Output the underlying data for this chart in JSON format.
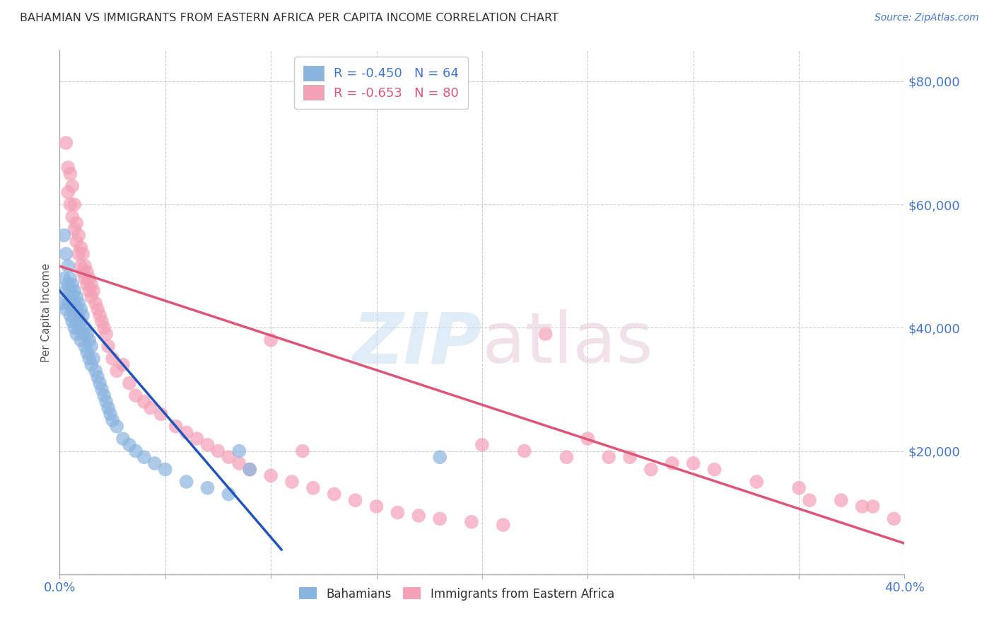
{
  "title": "BAHAMIAN VS IMMIGRANTS FROM EASTERN AFRICA PER CAPITA INCOME CORRELATION CHART",
  "source": "Source: ZipAtlas.com",
  "ylabel": "Per Capita Income",
  "xmin": 0.0,
  "xmax": 0.4,
  "ymin": 0,
  "ymax": 85000,
  "yticks": [
    0,
    20000,
    40000,
    60000,
    80000
  ],
  "xticks": [
    0.0,
    0.05,
    0.1,
    0.15,
    0.2,
    0.25,
    0.3,
    0.35,
    0.4
  ],
  "blue_R": -0.45,
  "blue_N": 64,
  "pink_R": -0.653,
  "pink_N": 80,
  "blue_color": "#8ab4e0",
  "pink_color": "#f4a0b5",
  "blue_line_color": "#2255bb",
  "pink_line_color": "#dd5577",
  "blue_line_x0": 0.0,
  "blue_line_y0": 46000,
  "blue_line_x1": 0.105,
  "blue_line_y1": 4000,
  "pink_line_x0": 0.0,
  "pink_line_y0": 50000,
  "pink_line_x1": 0.4,
  "pink_line_y1": 5000,
  "legend_label_blue": "Bahamians",
  "legend_label_pink": "Immigrants from Eastern Africa",
  "background_color": "#ffffff",
  "grid_color": "#cccccc",
  "title_color": "#333333",
  "axis_label_color": "#4477cc",
  "blue_scatter_x": [
    0.001,
    0.002,
    0.002,
    0.003,
    0.003,
    0.003,
    0.004,
    0.004,
    0.004,
    0.005,
    0.005,
    0.005,
    0.005,
    0.006,
    0.006,
    0.006,
    0.006,
    0.007,
    0.007,
    0.007,
    0.007,
    0.008,
    0.008,
    0.008,
    0.008,
    0.009,
    0.009,
    0.009,
    0.01,
    0.01,
    0.01,
    0.011,
    0.011,
    0.012,
    0.012,
    0.013,
    0.013,
    0.014,
    0.014,
    0.015,
    0.015,
    0.016,
    0.017,
    0.018,
    0.019,
    0.02,
    0.021,
    0.022,
    0.023,
    0.024,
    0.025,
    0.027,
    0.03,
    0.033,
    0.036,
    0.04,
    0.045,
    0.05,
    0.06,
    0.07,
    0.08,
    0.085,
    0.09,
    0.18
  ],
  "blue_scatter_y": [
    44000,
    55000,
    48000,
    52000,
    46000,
    43000,
    50000,
    47000,
    44000,
    48000,
    46000,
    44000,
    42000,
    47000,
    45000,
    43000,
    41000,
    46000,
    44000,
    42000,
    40000,
    45000,
    43000,
    41000,
    39000,
    44000,
    42000,
    40000,
    43000,
    41000,
    38000,
    42000,
    39000,
    40000,
    37000,
    39000,
    36000,
    38000,
    35000,
    37000,
    34000,
    35000,
    33000,
    32000,
    31000,
    30000,
    29000,
    28000,
    27000,
    26000,
    25000,
    24000,
    22000,
    21000,
    20000,
    19000,
    18000,
    17000,
    15000,
    14000,
    13000,
    20000,
    17000,
    19000
  ],
  "pink_scatter_x": [
    0.003,
    0.004,
    0.004,
    0.005,
    0.005,
    0.006,
    0.006,
    0.007,
    0.007,
    0.008,
    0.008,
    0.009,
    0.009,
    0.01,
    0.01,
    0.011,
    0.011,
    0.012,
    0.012,
    0.013,
    0.013,
    0.014,
    0.014,
    0.015,
    0.015,
    0.016,
    0.017,
    0.018,
    0.019,
    0.02,
    0.021,
    0.022,
    0.023,
    0.025,
    0.027,
    0.03,
    0.033,
    0.036,
    0.04,
    0.043,
    0.048,
    0.055,
    0.06,
    0.065,
    0.07,
    0.075,
    0.08,
    0.085,
    0.09,
    0.1,
    0.11,
    0.12,
    0.13,
    0.14,
    0.15,
    0.16,
    0.17,
    0.18,
    0.195,
    0.21,
    0.23,
    0.25,
    0.27,
    0.29,
    0.31,
    0.33,
    0.35,
    0.37,
    0.385,
    0.395,
    0.1,
    0.115,
    0.26,
    0.3,
    0.2,
    0.22,
    0.24,
    0.28,
    0.355,
    0.38
  ],
  "pink_scatter_y": [
    70000,
    66000,
    62000,
    65000,
    60000,
    63000,
    58000,
    60000,
    56000,
    57000,
    54000,
    55000,
    52000,
    53000,
    50000,
    52000,
    49000,
    50000,
    48000,
    49000,
    47000,
    48000,
    46000,
    47000,
    45000,
    46000,
    44000,
    43000,
    42000,
    41000,
    40000,
    39000,
    37000,
    35000,
    33000,
    34000,
    31000,
    29000,
    28000,
    27000,
    26000,
    24000,
    23000,
    22000,
    21000,
    20000,
    19000,
    18000,
    17000,
    16000,
    15000,
    14000,
    13000,
    12000,
    11000,
    10000,
    9500,
    9000,
    8500,
    8000,
    39000,
    22000,
    19000,
    18000,
    17000,
    15000,
    14000,
    12000,
    11000,
    9000,
    38000,
    20000,
    19000,
    18000,
    21000,
    20000,
    19000,
    17000,
    12000,
    11000
  ]
}
